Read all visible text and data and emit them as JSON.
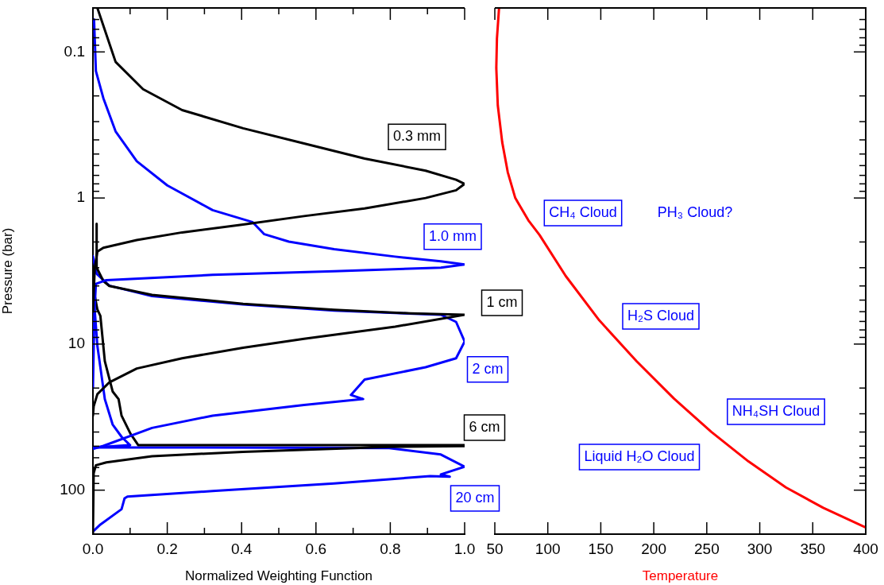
{
  "chart_data": [
    {
      "type": "line",
      "xlabel": "Normalized Weighting Function",
      "ylabel": "Pressure (bar)",
      "log": "y",
      "xlim": [
        0,
        1
      ],
      "xticks": [
        {
          "value": 0,
          "label": "0.0"
        },
        {
          "value": 0.1,
          "label": null
        },
        {
          "value": 0.2,
          "label": "0.2"
        },
        {
          "value": 0.3,
          "label": null
        },
        {
          "value": 0.4,
          "label": "0.4"
        },
        {
          "value": 0.5,
          "label": null
        },
        {
          "value": 0.6,
          "label": "0.6"
        },
        {
          "value": 0.7,
          "label": null
        },
        {
          "value": 0.8,
          "label": "0.8"
        },
        {
          "value": 0.9,
          "label": null
        },
        {
          "value": 1,
          "label": "1.0"
        }
      ],
      "ylim": [
        200,
        0.05
      ],
      "yticks": [
        {
          "value": 0.06,
          "label": null
        },
        {
          "value": 0.07,
          "label": null
        },
        {
          "value": 0.08,
          "label": null
        },
        {
          "value": 0.09,
          "label": null
        },
        0.1,
        {
          "value": 0.2,
          "label": null
        },
        {
          "value": 0.3,
          "label": null
        },
        {
          "value": 0.4,
          "label": null
        },
        {
          "value": 0.5,
          "label": null
        },
        {
          "value": 0.6,
          "label": null
        },
        {
          "value": 0.7,
          "label": null
        },
        {
          "value": 0.8,
          "label": null
        },
        {
          "value": 0.9,
          "label": null
        },
        1,
        {
          "value": 2,
          "label": null
        },
        {
          "value": 3,
          "label": null
        },
        {
          "value": 4,
          "label": null
        },
        {
          "value": 5,
          "label": null
        },
        {
          "value": 6,
          "label": null
        },
        {
          "value": 7,
          "label": null
        },
        {
          "value": 8,
          "label": null
        },
        {
          "value": 9,
          "label": null
        },
        10,
        {
          "value": 20,
          "label": null
        },
        {
          "value": 30,
          "label": null
        },
        {
          "value": 40,
          "label": null
        },
        {
          "value": 50,
          "label": null
        },
        {
          "value": 60,
          "label": null
        },
        {
          "value": 70,
          "label": null
        },
        {
          "value": 80,
          "label": null
        },
        {
          "value": 90,
          "label": null
        },
        100
      ],
      "series": [
        {
          "name": "0.3 mm",
          "color": "#000000",
          "x": [
            0.012,
            0.061,
            0.135,
            0.24,
            0.404,
            0.568,
            0.731,
            0.895,
            0.977,
            1.0,
            0.977,
            0.895,
            0.731,
            0.568,
            0.404,
            0.24,
            0.118,
            0.028,
            0.012,
            0.005,
            0.0
          ],
          "values": [
            0.05,
            0.117,
            0.18,
            0.25,
            0.333,
            0.423,
            0.537,
            0.65,
            0.75,
            0.8,
            0.885,
            1.0,
            1.18,
            1.33,
            1.52,
            1.72,
            1.94,
            2.19,
            2.33,
            3,
            6
          ]
        },
        {
          "name": "1.0 mm",
          "color": "#0000ff",
          "x": [
            0.003,
            0.008,
            0.028,
            0.061,
            0.118,
            0.2,
            0.322,
            0.429,
            0.461,
            0.527,
            0.649,
            0.813,
            0.936,
            1.0,
            0.936,
            0.649,
            0.322,
            0.036,
            0.008,
            0.004,
            0.0
          ],
          "values": [
            0.06,
            0.135,
            0.207,
            0.35,
            0.56,
            0.82,
            1.21,
            1.46,
            1.77,
            1.99,
            2.24,
            2.52,
            2.71,
            2.85,
            3.0,
            3.17,
            3.36,
            3.65,
            3.87,
            6,
            20
          ]
        },
        {
          "name": "1 cm",
          "color": "#000000",
          "x": [
            0.01,
            0.01,
            0.028,
            0.044,
            0.159,
            0.404,
            0.649,
            0.854,
            1.0,
            0.813,
            0.568,
            0.404,
            0.24,
            0.118,
            0.044,
            0.012,
            0.002,
            0.0
          ],
          "values": [
            1.5,
            3,
            3.7,
            4.0,
            4.6,
            5.3,
            5.83,
            6.16,
            6.3,
            7.6,
            9.2,
            10.6,
            12.5,
            14.7,
            18.3,
            22,
            26.7,
            30.9
          ]
        },
        {
          "name": "2 cm",
          "color": "#0000ff",
          "x": [
            0.0,
            0.01,
            0.044,
            0.159,
            0.404,
            0.649,
            0.936,
            0.977,
            1.0,
            0.977,
            0.895,
            0.731,
            0.694,
            0.727,
            0.568,
            0.322,
            0.159,
            0.028,
            0.002
          ],
          "values": [
            2.5,
            3.3,
            3.98,
            4.7,
            5.35,
            5.89,
            6.3,
            7.05,
            9.6,
            12.5,
            14.4,
            17.5,
            22.3,
            23.8,
            26.1,
            30.9,
            37.5,
            49.8,
            52
          ]
        },
        {
          "name": "6 cm",
          "color": "#000000",
          "x": [
            0.0,
            0.012,
            0.02,
            0.032,
            0.053,
            0.069,
            0.077,
            0.101,
            0.122,
            1.0,
            1.0,
            0.797,
            0.404,
            0.159,
            0.036,
            0.008,
            0.002,
            0.0
          ],
          "values": [
            4,
            5.8,
            6.4,
            13.1,
            21.1,
            23.8,
            30.9,
            41.1,
            49.2,
            49.2,
            50,
            50.6,
            54.6,
            58.6,
            64.6,
            67.6,
            76.5,
            200
          ]
        },
        {
          "name": "20 cm",
          "color": "#0000ff",
          "x": [
            0.0,
            0.012,
            0.032,
            0.053,
            0.077,
            0.1,
            0.0,
            0.5,
            0.797,
            0.936,
            1.0,
            0.936,
            0.96,
            0.907,
            0.649,
            0.322,
            0.093,
            0.085,
            0.077,
            0.02,
            0.002
          ],
          "values": [
            4,
            10.3,
            23.8,
            35.5,
            43.1,
            49.2,
            51,
            51.2,
            51.5,
            57,
            69,
            78,
            80.9,
            80.2,
            90,
            101.5,
            110.5,
            113.9,
            135,
            172,
            190
          ]
        }
      ]
    },
    {
      "type": "line",
      "xlabel": "Temperature",
      "log": "y",
      "tick_labels": "x",
      "xlim": [
        50,
        400
      ],
      "xticks": [
        50,
        100,
        150,
        200,
        250,
        300,
        350,
        400
      ],
      "ylim": [
        200,
        0.05
      ],
      "yticks": [
        {
          "value": 0.06,
          "label": null
        },
        {
          "value": 0.07,
          "label": null
        },
        {
          "value": 0.08,
          "label": null
        },
        {
          "value": 0.09,
          "label": null
        },
        0.1,
        {
          "value": 0.2,
          "label": null
        },
        {
          "value": 0.3,
          "label": null
        },
        {
          "value": 0.4,
          "label": null
        },
        {
          "value": 0.5,
          "label": null
        },
        {
          "value": 0.6,
          "label": null
        },
        {
          "value": 0.7,
          "label": null
        },
        {
          "value": 0.8,
          "label": null
        },
        {
          "value": 0.9,
          "label": null
        },
        1,
        {
          "value": 2,
          "label": null
        },
        {
          "value": 3,
          "label": null
        },
        {
          "value": 4,
          "label": null
        },
        {
          "value": 5,
          "label": null
        },
        {
          "value": 6,
          "label": null
        },
        {
          "value": 7,
          "label": null
        },
        {
          "value": 8,
          "label": null
        },
        {
          "value": 9,
          "label": null
        },
        10,
        {
          "value": 20,
          "label": null
        },
        {
          "value": 30,
          "label": null
        },
        {
          "value": 40,
          "label": null
        },
        {
          "value": 50,
          "label": null
        },
        {
          "value": 60,
          "label": null
        },
        {
          "value": 70,
          "label": null
        },
        {
          "value": 80,
          "label": null
        },
        {
          "value": 90,
          "label": null
        },
        100
      ],
      "series": [
        {
          "color": "#ff0000",
          "x": [
            54,
            52,
            51.4,
            52.8,
            57,
            62.2,
            69.3,
            81.6,
            92.2,
            116.9,
            148.6,
            183.8,
            219,
            254.3,
            289.4,
            324.7,
            359.9,
            400
          ],
          "values": [
            0.05,
            0.081,
            0.129,
            0.232,
            0.416,
            0.665,
            1.0,
            1.42,
            1.79,
            3.42,
            6.88,
            13.1,
            23.6,
            39.9,
            63.6,
            95.8,
            132,
            180
          ]
        }
      ],
      "annotations": [
        "CH₄ Cloud",
        "PH₃ Cloud?",
        "H₂S Cloud",
        "NH₄SH Cloud",
        "Liquid H₂O Cloud"
      ]
    }
  ]
}
